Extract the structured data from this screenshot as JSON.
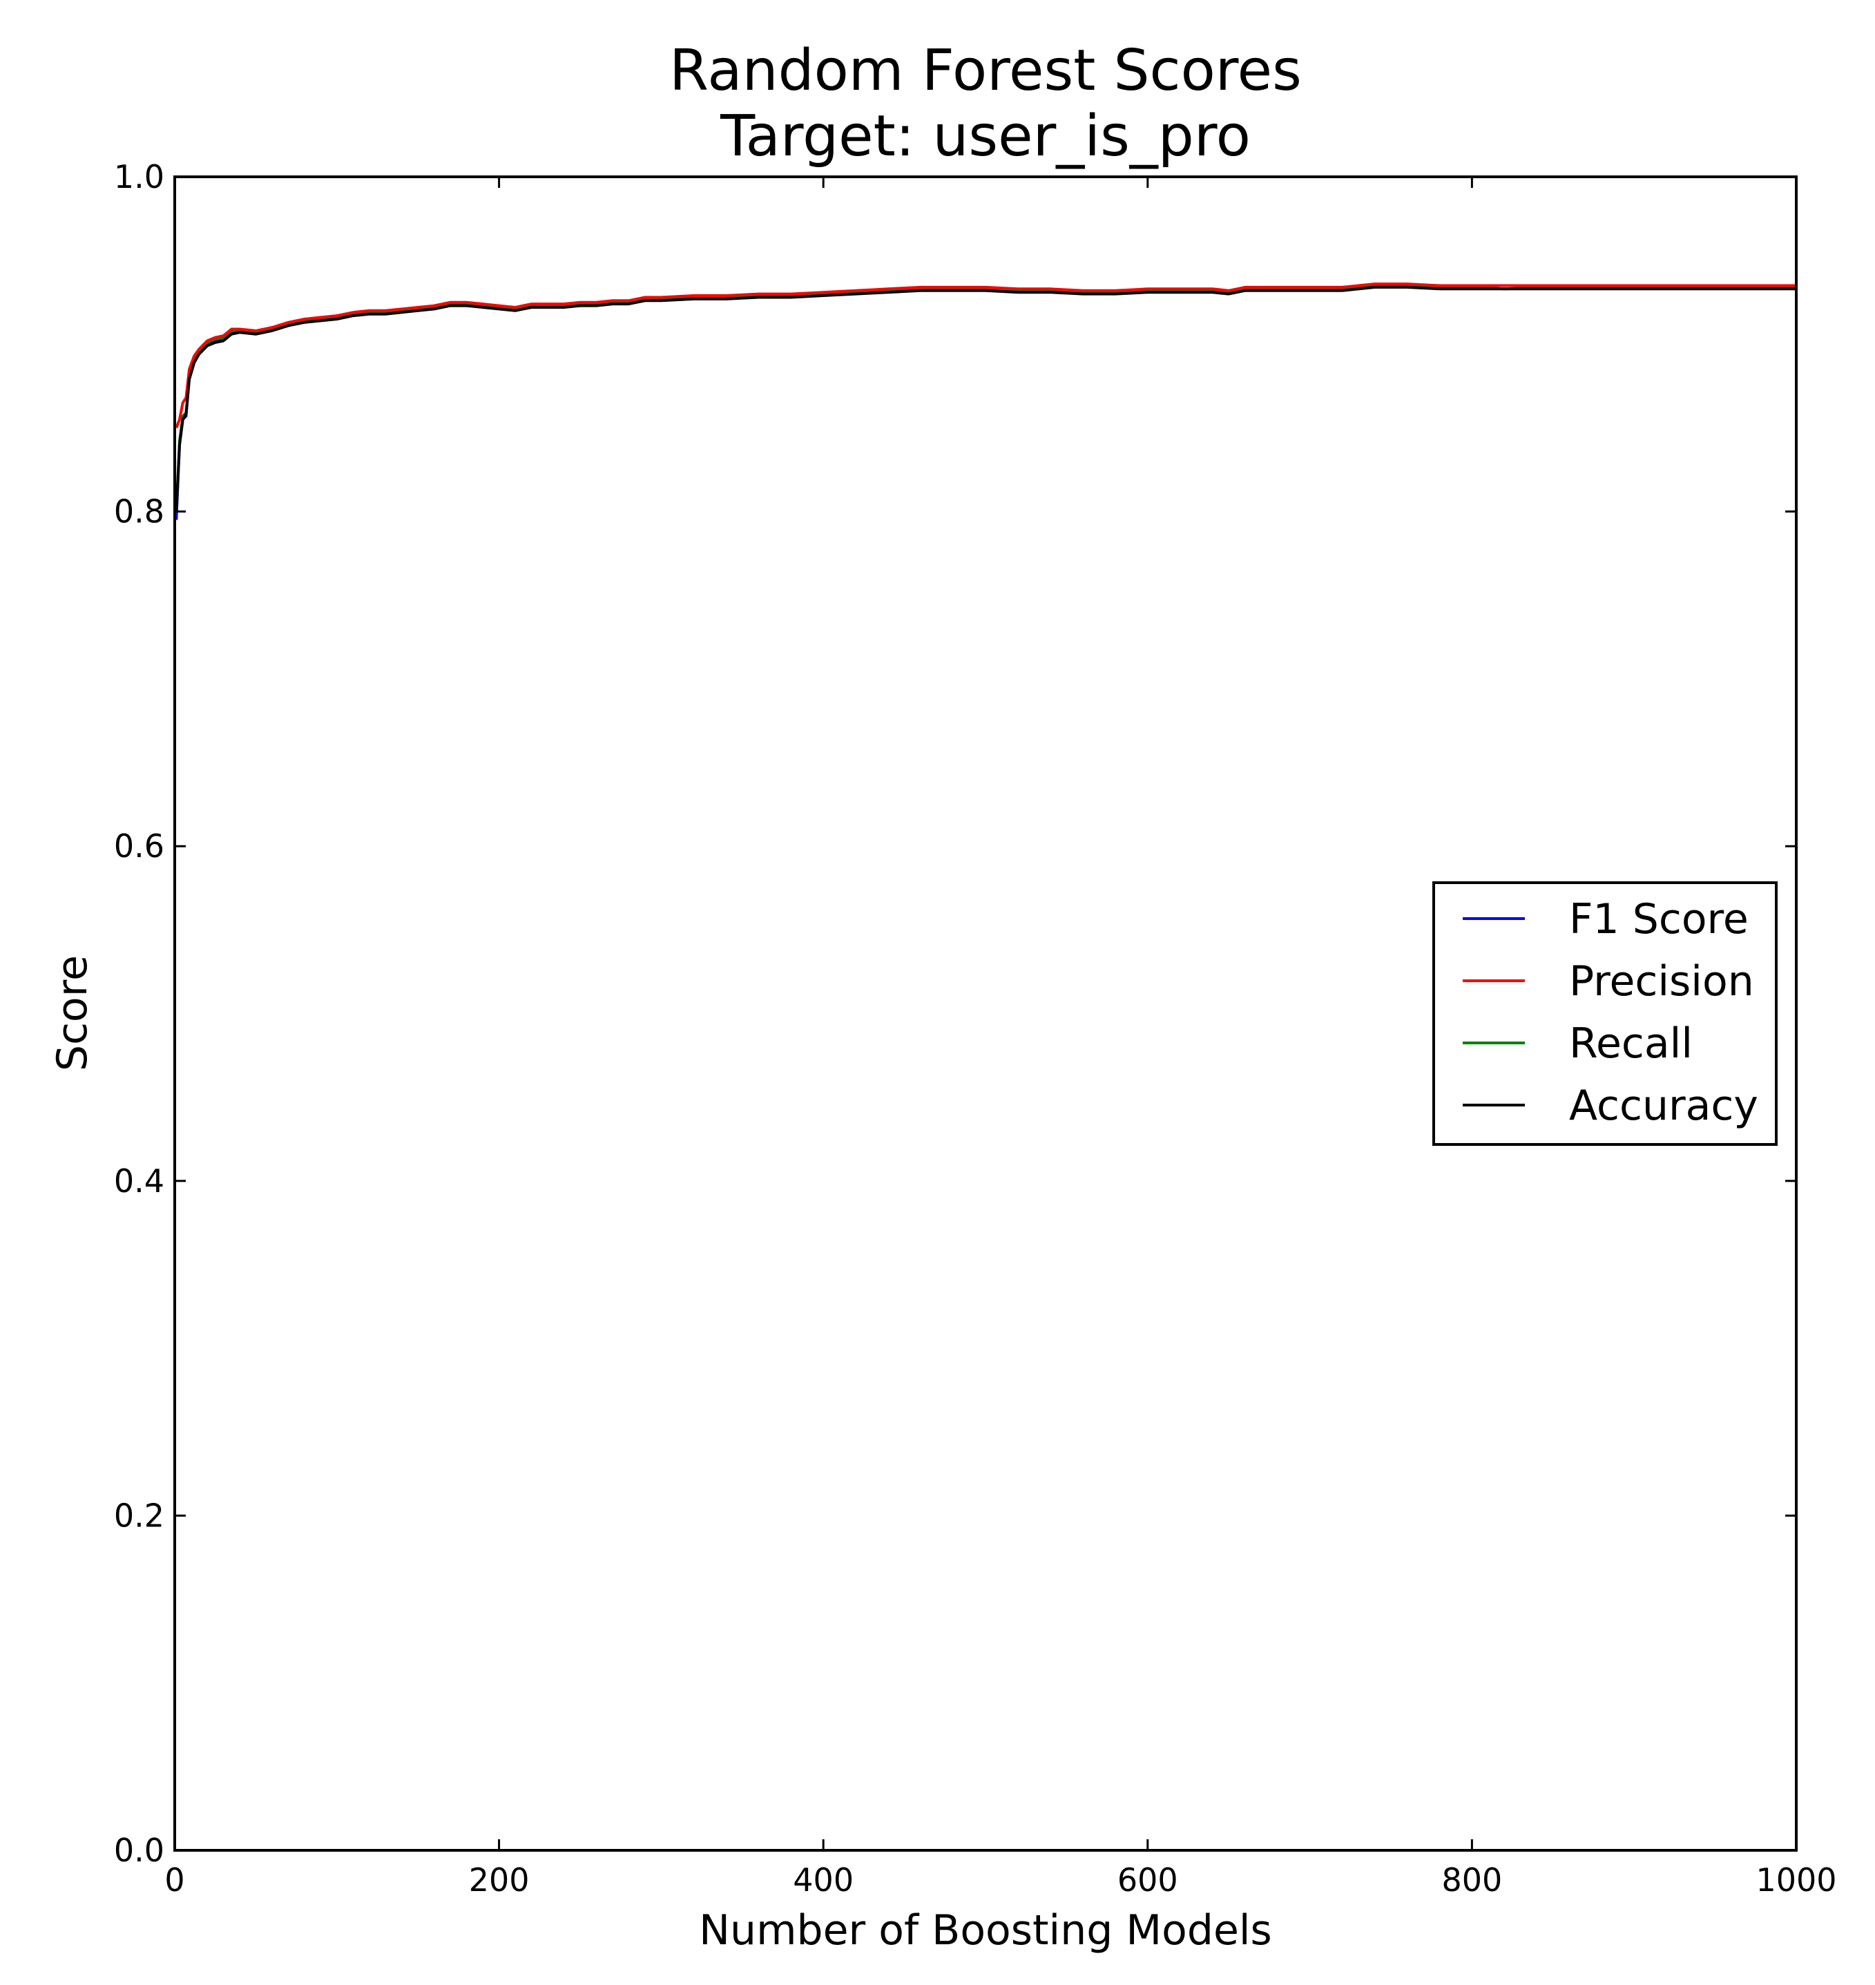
{
  "chart_data": {
    "type": "line",
    "title": "Random Forest Scores",
    "subtitle": "Target: user_is_pro",
    "xlabel": "Number of Boosting Models",
    "ylabel": "Score",
    "xlim": [
      0,
      1000
    ],
    "ylim": [
      0.0,
      1.0
    ],
    "xticks": [
      0,
      200,
      400,
      600,
      800,
      1000
    ],
    "xtick_labels": [
      "0",
      "200",
      "400",
      "600",
      "800",
      "1000"
    ],
    "yticks": [
      0.0,
      0.2,
      0.4,
      0.6,
      0.8,
      1.0
    ],
    "ytick_labels": [
      "0.0",
      "0.2",
      "0.4",
      "0.6",
      "0.8",
      "1.0"
    ],
    "grid": false,
    "legend_position": "center-right",
    "x": [
      1,
      3,
      5,
      7,
      9,
      12,
      15,
      20,
      25,
      30,
      35,
      40,
      50,
      60,
      70,
      80,
      90,
      100,
      110,
      120,
      130,
      140,
      150,
      160,
      170,
      180,
      190,
      200,
      210,
      220,
      230,
      240,
      250,
      260,
      270,
      280,
      290,
      300,
      320,
      340,
      360,
      380,
      400,
      420,
      440,
      460,
      480,
      500,
      520,
      540,
      560,
      580,
      600,
      620,
      640,
      650,
      660,
      680,
      700,
      720,
      740,
      760,
      780,
      800,
      820,
      850,
      900,
      950,
      1000
    ],
    "series": [
      {
        "name": "F1 Score",
        "color": "#0000ff",
        "values": [
          0.795,
          0.84,
          0.855,
          0.857,
          0.88,
          0.89,
          0.895,
          0.9,
          0.902,
          0.903,
          0.907,
          0.908,
          0.907,
          0.909,
          0.912,
          0.914,
          0.915,
          0.916,
          0.918,
          0.919,
          0.919,
          0.92,
          0.921,
          0.922,
          0.924,
          0.924,
          0.923,
          0.922,
          0.921,
          0.923,
          0.923,
          0.923,
          0.924,
          0.924,
          0.925,
          0.925,
          0.927,
          0.927,
          0.928,
          0.928,
          0.929,
          0.929,
          0.93,
          0.931,
          0.932,
          0.933,
          0.933,
          0.933,
          0.932,
          0.932,
          0.931,
          0.931,
          0.932,
          0.932,
          0.932,
          0.931,
          0.933,
          0.933,
          0.933,
          0.933,
          0.935,
          0.935,
          0.934,
          0.934,
          0.933,
          0.934,
          0.934,
          0.934,
          0.934
        ]
      },
      {
        "name": "Precision",
        "color": "#ff0000",
        "values": [
          0.85,
          0.855,
          0.865,
          0.868,
          0.885,
          0.893,
          0.897,
          0.902,
          0.904,
          0.905,
          0.909,
          0.909,
          0.908,
          0.91,
          0.913,
          0.915,
          0.916,
          0.917,
          0.919,
          0.92,
          0.92,
          0.921,
          0.922,
          0.923,
          0.925,
          0.925,
          0.924,
          0.923,
          0.922,
          0.924,
          0.924,
          0.924,
          0.925,
          0.925,
          0.926,
          0.926,
          0.928,
          0.928,
          0.929,
          0.929,
          0.93,
          0.93,
          0.931,
          0.932,
          0.933,
          0.934,
          0.934,
          0.934,
          0.933,
          0.933,
          0.932,
          0.932,
          0.933,
          0.933,
          0.933,
          0.932,
          0.934,
          0.934,
          0.934,
          0.934,
          0.936,
          0.936,
          0.935,
          0.935,
          0.935,
          0.935,
          0.935,
          0.935,
          0.935
        ]
      },
      {
        "name": "Recall",
        "color": "#008000",
        "values": [
          0.8,
          0.842,
          0.857,
          0.859,
          0.881,
          0.891,
          0.896,
          0.901,
          0.903,
          0.904,
          0.908,
          0.908,
          0.907,
          0.909,
          0.912,
          0.914,
          0.915,
          0.916,
          0.918,
          0.919,
          0.919,
          0.92,
          0.921,
          0.922,
          0.924,
          0.924,
          0.923,
          0.922,
          0.921,
          0.923,
          0.923,
          0.923,
          0.924,
          0.924,
          0.925,
          0.925,
          0.927,
          0.927,
          0.928,
          0.928,
          0.929,
          0.929,
          0.93,
          0.931,
          0.932,
          0.933,
          0.933,
          0.933,
          0.932,
          0.932,
          0.931,
          0.931,
          0.932,
          0.932,
          0.932,
          0.931,
          0.933,
          0.933,
          0.933,
          0.933,
          0.935,
          0.935,
          0.934,
          0.934,
          0.933,
          0.934,
          0.934,
          0.934,
          0.934
        ]
      },
      {
        "name": "Accuracy",
        "color": "#000000",
        "values": [
          0.8,
          0.84,
          0.855,
          0.858,
          0.879,
          0.889,
          0.894,
          0.899,
          0.901,
          0.902,
          0.906,
          0.907,
          0.906,
          0.908,
          0.911,
          0.913,
          0.914,
          0.915,
          0.917,
          0.918,
          0.918,
          0.919,
          0.92,
          0.921,
          0.923,
          0.923,
          0.922,
          0.921,
          0.92,
          0.922,
          0.922,
          0.922,
          0.923,
          0.923,
          0.924,
          0.924,
          0.926,
          0.926,
          0.927,
          0.927,
          0.928,
          0.928,
          0.929,
          0.93,
          0.931,
          0.932,
          0.932,
          0.932,
          0.931,
          0.931,
          0.93,
          0.93,
          0.931,
          0.931,
          0.931,
          0.93,
          0.932,
          0.932,
          0.932,
          0.932,
          0.934,
          0.934,
          0.933,
          0.933,
          0.933,
          0.933,
          0.933,
          0.933,
          0.933
        ]
      }
    ]
  }
}
